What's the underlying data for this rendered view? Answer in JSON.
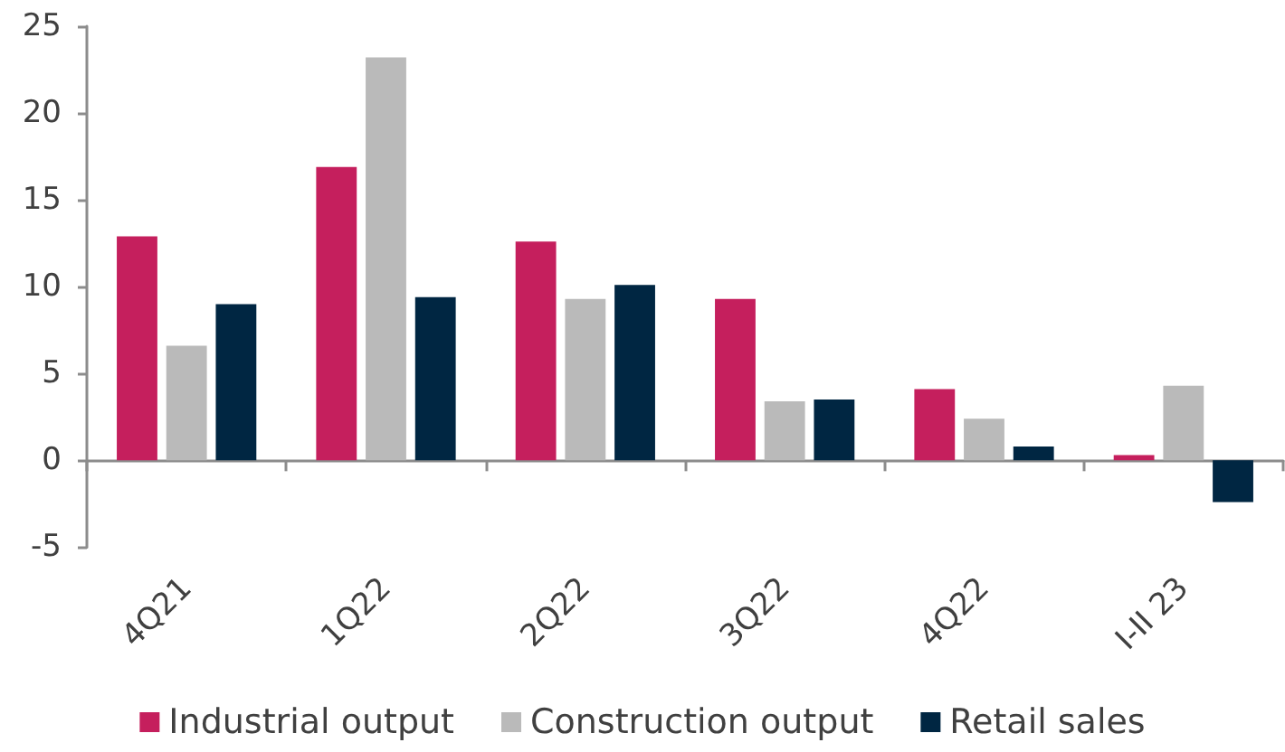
{
  "chart_data": {
    "type": "bar",
    "categories": [
      "4Q21",
      "1Q22",
      "2Q22",
      "3Q22",
      "4Q22",
      "I-II 23"
    ],
    "series": [
      {
        "name": "Industrial output",
        "color": "#c51f5d",
        "values": [
          12.9,
          16.9,
          12.6,
          9.3,
          4.1,
          0.3
        ]
      },
      {
        "name": "Construction output",
        "color": "#bababa",
        "values": [
          6.6,
          23.2,
          9.3,
          3.4,
          2.4,
          4.3
        ]
      },
      {
        "name": "Retail sales",
        "color": "#002642",
        "values": [
          9.0,
          9.4,
          10.1,
          3.5,
          0.8,
          -2.4
        ]
      }
    ],
    "ylim": [
      -5,
      25
    ],
    "yticks": [
      -5,
      0,
      5,
      10,
      15,
      20,
      25
    ],
    "legend": "bottom"
  }
}
